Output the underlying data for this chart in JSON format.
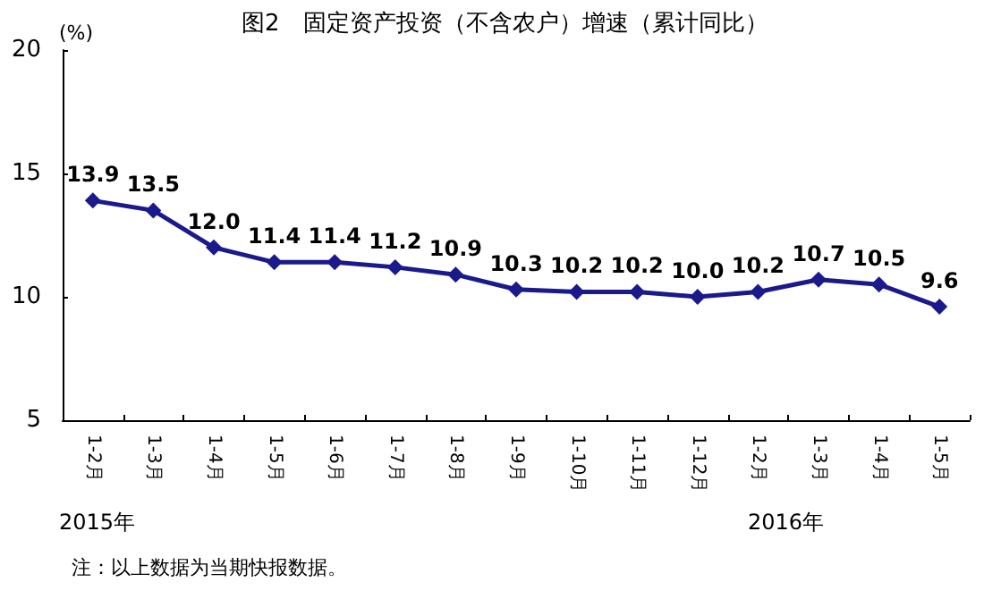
{
  "chart_data": {
    "type": "line",
    "title": "图2　固定资产投资（不含农户）增速（累计同比）",
    "ylabel": "(%)",
    "categories": [
      "1-2月",
      "1-3月",
      "1-4月",
      "1-5月",
      "1-6月",
      "1-7月",
      "1-8月",
      "1-9月",
      "1-10月",
      "1-11月",
      "1-12月",
      "1-2月",
      "1-3月",
      "1-4月",
      "1-5月"
    ],
    "series": [
      {
        "color": "#1a1a8c",
        "values": [
          13.9,
          13.5,
          12.0,
          11.4,
          11.4,
          11.2,
          10.9,
          10.3,
          10.2,
          10.2,
          10.0,
          10.2,
          10.7,
          10.5,
          9.6
        ]
      }
    ],
    "value_labels": [
      "13.9",
      "13.5",
      "12.0",
      "11.4",
      "11.4",
      "11.2",
      "10.9",
      "10.3",
      "10.2",
      "10.2",
      "10.0",
      "10.2",
      "10.7",
      "10.5",
      "9.6"
    ],
    "ylim": [
      5,
      20
    ],
    "yticks": [
      5,
      10,
      15,
      20
    ],
    "grid": false,
    "marker": "diamond",
    "line_style": "solid",
    "annotations": [
      "2015年",
      "2016年",
      "注：以上数据为当期快报数据。"
    ]
  }
}
